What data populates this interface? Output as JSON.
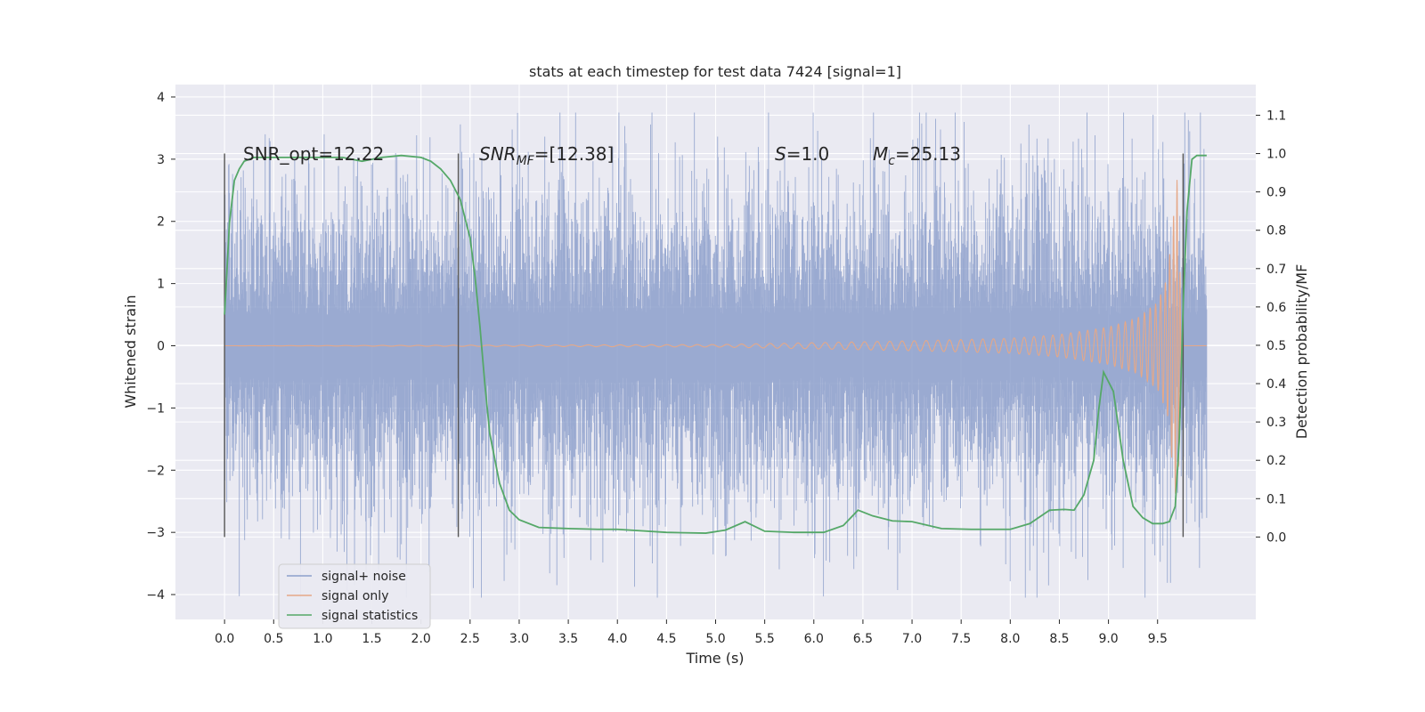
{
  "chart_data": {
    "type": "line",
    "title": "stats at each timestep for test data 7424 [signal=1]",
    "xlabel": "Time (s)",
    "ylabel": "Whitened strain",
    "y2label": "Detection probability/MF",
    "xlim": [
      -0.5,
      10.5
    ],
    "ylim": [
      -4.4,
      4.2
    ],
    "y2lim": [
      -0.215,
      1.18
    ],
    "x_ticks": [
      0.0,
      0.5,
      1.0,
      1.5,
      2.0,
      2.5,
      3.0,
      3.5,
      4.0,
      4.5,
      5.0,
      5.5,
      6.0,
      6.5,
      7.0,
      7.5,
      8.0,
      8.5,
      9.0,
      9.5
    ],
    "x_tick_labels": [
      "0.0",
      "0.5",
      "1.0",
      "1.5",
      "2.0",
      "2.5",
      "3.0",
      "3.5",
      "4.0",
      "4.5",
      "5.0",
      "5.5",
      "6.0",
      "6.5",
      "7.0",
      "7.5",
      "8.0",
      "8.5",
      "9.0",
      "9.5"
    ],
    "y_ticks": [
      -4,
      -3,
      -2,
      -1,
      0,
      1,
      2,
      3,
      4
    ],
    "y_tick_labels": [
      "−4",
      "−3",
      "−2",
      "−1",
      "0",
      "1",
      "2",
      "3",
      "4"
    ],
    "y2_ticks": [
      0.0,
      0.1,
      0.2,
      0.3,
      0.4,
      0.5,
      0.6,
      0.7,
      0.8,
      0.9,
      1.0,
      1.1
    ],
    "y2_tick_labels": [
      "0.0",
      "0.1",
      "0.2",
      "0.3",
      "0.4",
      "0.5",
      "0.6",
      "0.7",
      "0.8",
      "0.9",
      "1.0",
      "1.1"
    ],
    "grid": true,
    "legend_position": "bottom-left",
    "series": [
      {
        "name": "signal+ noise",
        "color": "#8c9fcb",
        "x_range": [
          0.0,
          10.0
        ],
        "typical_amplitude": 1.2,
        "peak_range": [
          -4.05,
          3.75
        ]
      },
      {
        "name": "signal only",
        "color": "#e5a888",
        "x_range": [
          0.0,
          10.0
        ],
        "description_points": {
          "x": [
            0.0,
            5.0,
            6.0,
            7.0,
            8.0,
            8.5,
            9.0,
            9.3,
            9.5,
            9.6,
            9.65,
            9.7,
            9.75,
            10.0
          ],
          "envelope": [
            0.0,
            0.02,
            0.05,
            0.08,
            0.12,
            0.18,
            0.3,
            0.45,
            0.7,
            1.1,
            1.9,
            2.7,
            0.0,
            0.0
          ]
        }
      },
      {
        "name": "signal statistics",
        "color": "#55a868",
        "axis": "right",
        "x": [
          0.0,
          0.05,
          0.1,
          0.15,
          0.2,
          0.3,
          0.5,
          0.8,
          1.0,
          1.2,
          1.4,
          1.5,
          1.6,
          1.8,
          2.0,
          2.1,
          2.2,
          2.3,
          2.4,
          2.5,
          2.55,
          2.6,
          2.65,
          2.7,
          2.8,
          2.9,
          3.0,
          3.2,
          3.5,
          3.8,
          4.0,
          4.5,
          4.9,
          5.1,
          5.3,
          5.5,
          5.8,
          6.1,
          6.3,
          6.45,
          6.6,
          6.8,
          7.0,
          7.3,
          7.6,
          8.0,
          8.2,
          8.4,
          8.55,
          8.65,
          8.75,
          8.85,
          8.9,
          8.95,
          9.05,
          9.15,
          9.25,
          9.35,
          9.45,
          9.55,
          9.62,
          9.68,
          9.72,
          9.76,
          9.8,
          9.85,
          9.9,
          10.0
        ],
        "y": [
          0.58,
          0.82,
          0.93,
          0.96,
          0.98,
          0.99,
          0.99,
          0.99,
          0.99,
          0.99,
          0.98,
          0.985,
          0.99,
          0.995,
          0.99,
          0.98,
          0.96,
          0.93,
          0.88,
          0.78,
          0.68,
          0.55,
          0.4,
          0.27,
          0.14,
          0.07,
          0.045,
          0.025,
          0.022,
          0.02,
          0.02,
          0.012,
          0.01,
          0.018,
          0.04,
          0.015,
          0.012,
          0.012,
          0.03,
          0.07,
          0.055,
          0.042,
          0.04,
          0.022,
          0.02,
          0.02,
          0.035,
          0.07,
          0.072,
          0.07,
          0.11,
          0.2,
          0.33,
          0.43,
          0.38,
          0.2,
          0.08,
          0.05,
          0.035,
          0.035,
          0.04,
          0.08,
          0.25,
          0.6,
          0.85,
          0.985,
          0.995,
          0.995
        ]
      }
    ],
    "vertical_markers_x": [
      0.0,
      2.38,
      9.76
    ],
    "annotations": [
      {
        "text": "SNR_opt=12.22"
      },
      {
        "text": "SNR",
        "sub": "MF",
        "rest": "=[12.38]"
      },
      {
        "text": "S",
        "rest": "=1.0"
      },
      {
        "text": "M",
        "sub": "c",
        "rest": "=25.13"
      }
    ]
  }
}
